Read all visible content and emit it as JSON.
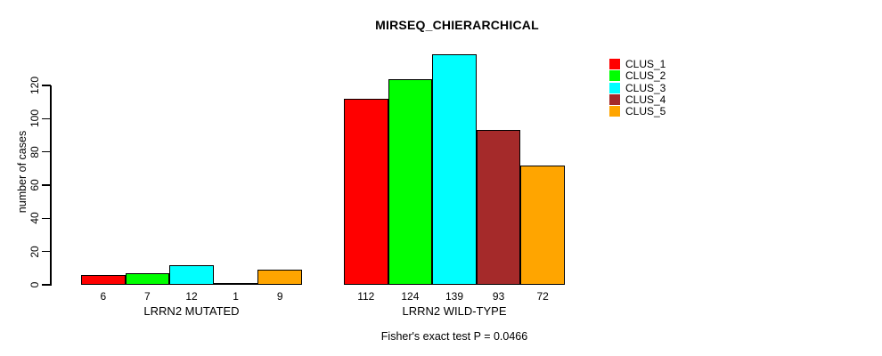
{
  "chart_data": {
    "type": "bar",
    "title": "MIRSEQ_CHIERARCHICAL",
    "ylabel": "number of cases",
    "xlabel": "",
    "yticks": [
      0,
      20,
      40,
      60,
      80,
      100,
      120
    ],
    "ylim": [
      0,
      140
    ],
    "grid": false,
    "legend_position": "right",
    "annotation": "Fisher's exact test P = 0.0466",
    "groups": [
      {
        "label": "LRRN2 MUTATED",
        "values": [
          6,
          7,
          12,
          1,
          9
        ]
      },
      {
        "label": "LRRN2 WILD-TYPE",
        "values": [
          112,
          124,
          139,
          93,
          72
        ]
      }
    ],
    "series": [
      {
        "name": "CLUS_1",
        "color": "#FF0000"
      },
      {
        "name": "CLUS_2",
        "color": "#00FF00"
      },
      {
        "name": "CLUS_3",
        "color": "#00FFFF"
      },
      {
        "name": "CLUS_4",
        "color": "#A52A2A"
      },
      {
        "name": "CLUS_5",
        "color": "#FFA500"
      }
    ],
    "bar_border_color": "#000000",
    "background_color": "#FFFFFF"
  }
}
